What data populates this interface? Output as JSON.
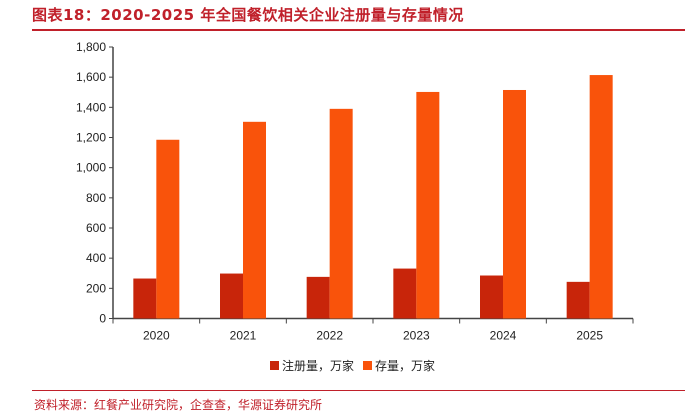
{
  "title": "图表18：2020-2025 年全国餐饮相关企业注册量与存量情况",
  "source": "资料来源：红餐产业研究院，企查查，华源证券研究所",
  "chart_data": {
    "type": "bar",
    "title": "图表18：2020-2025 年全国餐饮相关企业注册量与存量情况",
    "xlabel": "",
    "ylabel": "",
    "categories": [
      "2020",
      "2021",
      "2022",
      "2023",
      "2024",
      "2025"
    ],
    "series": [
      {
        "name": "注册量，万家",
        "color": "#c8250a",
        "values": [
          265,
          298,
          276,
          331,
          285,
          243
        ]
      },
      {
        "name": "存量，万家",
        "color": "#f9530b",
        "values": [
          1185,
          1304,
          1390,
          1502,
          1515,
          1614
        ]
      }
    ],
    "ylim": [
      0,
      1800
    ],
    "yticks": [
      0,
      200,
      400,
      600,
      800,
      1000,
      1200,
      1400,
      1600,
      1800
    ],
    "ytick_labels": [
      "0",
      "200",
      "400",
      "600",
      "800",
      "1,000",
      "1,200",
      "1,400",
      "1,600",
      "1,800"
    ],
    "grid": false,
    "legend": "bottom-center"
  }
}
